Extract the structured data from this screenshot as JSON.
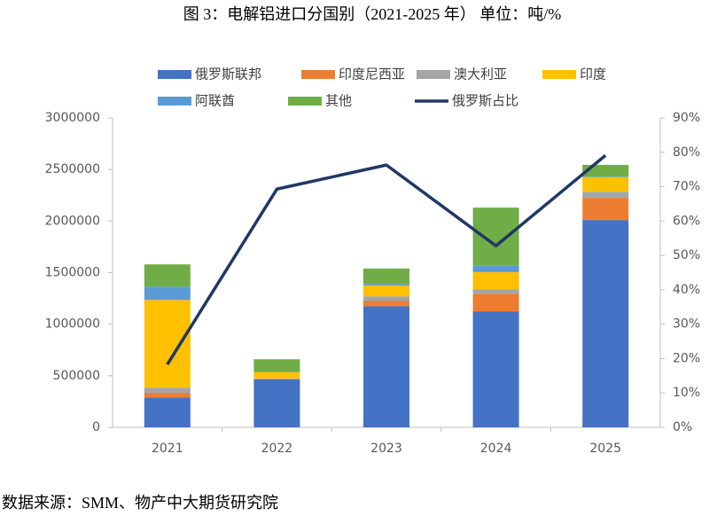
{
  "chart_data": {
    "type": "bar",
    "stacked": true,
    "title": "图 3：电解铝进口分国别（2021-2025 年）    单位：吨/%",
    "source": "数据来源：SMM、物产中大期货研究院",
    "categories": [
      "2021",
      "2022",
      "2023",
      "2024",
      "2025"
    ],
    "series": [
      {
        "name": "俄罗斯联邦",
        "color": "#4472c4",
        "values": [
          290000,
          465000,
          1175000,
          1125000,
          2010000
        ]
      },
      {
        "name": "印度尼西亚",
        "color": "#ed7d31",
        "values": [
          45000,
          5000,
          50000,
          170000,
          215000
        ]
      },
      {
        "name": "澳大利亚",
        "color": "#a5a5a5",
        "values": [
          50000,
          5000,
          45000,
          45000,
          60000
        ]
      },
      {
        "name": "印度",
        "color": "#ffc000",
        "values": [
          850000,
          60000,
          105000,
          165000,
          140000
        ]
      },
      {
        "name": "阿联酋",
        "color": "#5b9bd5",
        "values": [
          130000,
          0,
          15000,
          65000,
          5000
        ]
      },
      {
        "name": "其他",
        "color": "#70ad47",
        "values": [
          215000,
          125000,
          150000,
          560000,
          115000
        ]
      },
      {
        "name": "俄罗斯占比",
        "color": "#203864",
        "type": "line",
        "axis": "y2",
        "values": [
          18.3,
          69.3,
          76.3,
          52.8,
          79.1
        ]
      }
    ],
    "ylim": [
      0,
      3000000
    ],
    "yticks": [
      0,
      500000,
      1000000,
      1500000,
      2000000,
      2500000,
      3000000
    ],
    "y2lim": [
      0,
      90
    ],
    "y2ticks": [
      {
        "value": 0,
        "label": "0%"
      },
      {
        "value": 10,
        "label": "10%"
      },
      {
        "value": 20,
        "label": "20%"
      },
      {
        "value": 30,
        "label": "30%"
      },
      {
        "value": 40,
        "label": "40%"
      },
      {
        "value": 50,
        "label": "50%"
      },
      {
        "value": 60,
        "label": "60%"
      },
      {
        "value": 70,
        "label": "70%"
      },
      {
        "value": 80,
        "label": "80%"
      },
      {
        "value": 90,
        "label": "90%"
      }
    ],
    "grid": false
  }
}
